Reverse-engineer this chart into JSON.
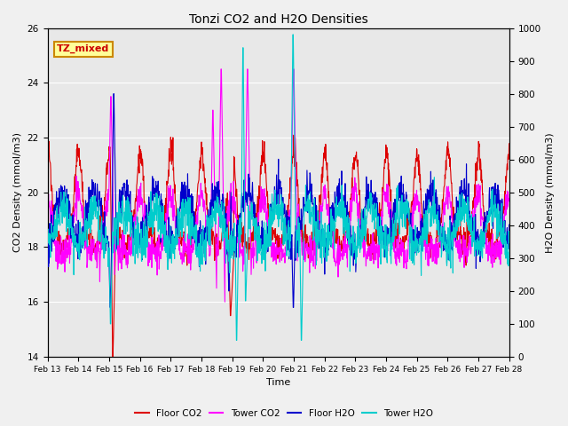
{
  "title": "Tonzi CO2 and H2O Densities",
  "xlabel": "Time",
  "ylabel_left": "CO2 Density (mmol/m3)",
  "ylabel_right": "H2O Density (mmol/m3)",
  "ylim_left": [
    14,
    26
  ],
  "ylim_right": [
    0,
    1000
  ],
  "yticks_left": [
    14,
    16,
    18,
    20,
    22,
    24,
    26
  ],
  "yticks_right": [
    0,
    100,
    200,
    300,
    400,
    500,
    600,
    700,
    800,
    900,
    1000
  ],
  "xtick_labels": [
    "Feb 13",
    "Feb 14",
    "Feb 15",
    "Feb 16",
    "Feb 17",
    "Feb 18",
    "Feb 19",
    "Feb 20",
    "Feb 21",
    "Feb 22",
    "Feb 23",
    "Feb 24",
    "Feb 25",
    "Feb 26",
    "Feb 27",
    "Feb 28"
  ],
  "colors": {
    "floor_co2": "#dd0000",
    "tower_co2": "#ff00ff",
    "floor_h2o": "#0000cc",
    "tower_h2o": "#00cccc"
  },
  "annotation_text": "TZ_mixed",
  "annotation_color": "#cc0000",
  "annotation_bg": "#ffff99",
  "annotation_border": "#cc8800",
  "background_color": "#e8e8e8",
  "grid_color": "#ffffff",
  "n_points": 1440
}
